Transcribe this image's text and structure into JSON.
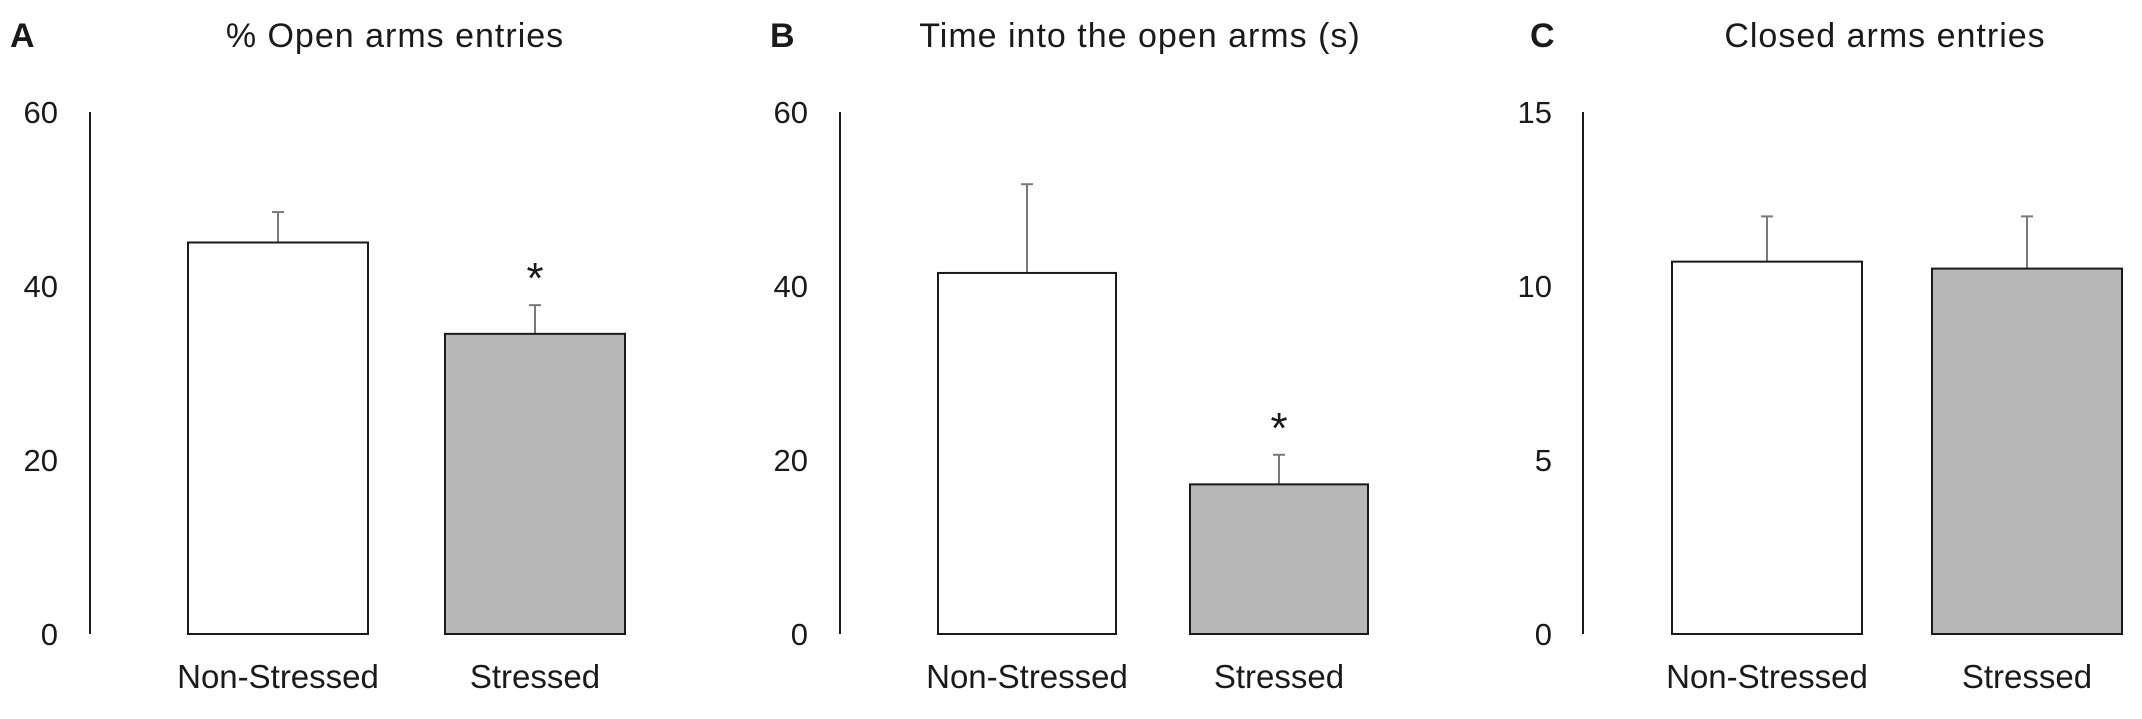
{
  "chart_data": [
    {
      "type": "bar",
      "panel": "A",
      "title": "% Open arms entries",
      "categories": [
        "Non-Stressed",
        "Stressed"
      ],
      "values": [
        45,
        34.5
      ],
      "errors": [
        3.5,
        3.3
      ],
      "significance": [
        "",
        "*"
      ],
      "ylim": [
        0,
        60
      ],
      "yticks": [
        "0",
        "20",
        "40",
        "60"
      ],
      "fill": [
        "#ffffff",
        "#b7b7b7"
      ]
    },
    {
      "type": "bar",
      "panel": "B",
      "title": "Time into the open arms (s)",
      "categories": [
        "Non-Stressed",
        "Stressed"
      ],
      "values": [
        41.5,
        17.2
      ],
      "errors": [
        10.2,
        3.4
      ],
      "significance": [
        "",
        "*"
      ],
      "ylim": [
        0,
        60
      ],
      "yticks": [
        "0",
        "20",
        "40",
        "60"
      ],
      "fill": [
        "#ffffff",
        "#b7b7b7"
      ]
    },
    {
      "type": "bar",
      "panel": "C",
      "title": "Closed arms entries",
      "categories": [
        "Non-Stressed",
        "Stressed"
      ],
      "values": [
        10.7,
        10.5
      ],
      "errors": [
        1.3,
        1.5
      ],
      "significance": [
        "",
        ""
      ],
      "ylim": [
        0,
        15
      ],
      "yticks": [
        "0",
        "5",
        "10",
        "15"
      ],
      "fill": [
        "#ffffff",
        "#b7b7b7"
      ]
    }
  ]
}
